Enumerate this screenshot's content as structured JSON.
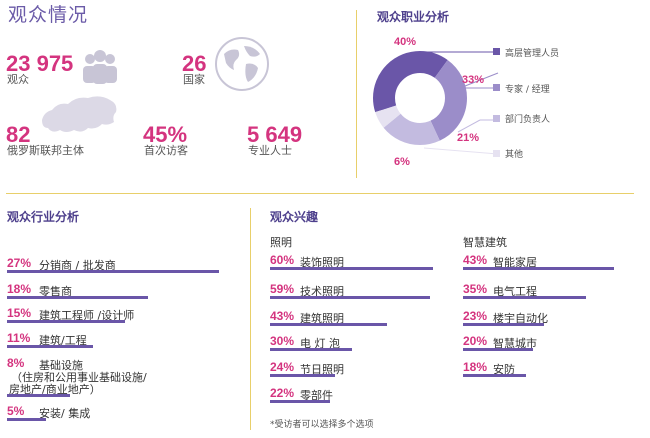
{
  "header": {
    "title": "观众情况"
  },
  "stats": [
    {
      "value": "23 975",
      "label": "观众"
    },
    {
      "value": "26",
      "label": "国家"
    },
    {
      "value": "82",
      "label": "俄罗斯联邦主体"
    },
    {
      "value": "45%",
      "label": "首次访客"
    },
    {
      "value": "5 649",
      "label": "专业人士"
    }
  ],
  "occupation": {
    "title": "观众职业分析",
    "labels": [
      "40%",
      "33%",
      "21%",
      "6%"
    ]
  },
  "industry": {
    "title": "观众行业分析",
    "items": [
      {
        "pct": "27%",
        "label": "分销商 / 批发商"
      },
      {
        "pct": "18%",
        "label": "零售商"
      },
      {
        "pct": "15%",
        "label": "建筑工程师 /设计师"
      },
      {
        "pct": "11%",
        "label": "建筑/工程"
      },
      {
        "pct": "8%",
        "label": "基础设施",
        "sub": [
          "（住房和公用事业基础设施/",
          "房地产/商业地产）"
        ]
      },
      {
        "pct": "5%",
        "label": "安装/ 集成"
      }
    ]
  },
  "interest": {
    "title": "观众兴趣",
    "lighting_title": "照明",
    "smart_title": "智慧建筑",
    "lighting": [
      {
        "pct": "60%",
        "label": "装饰照明"
      },
      {
        "pct": "59%",
        "label": "技术照明"
      },
      {
        "pct": "43%",
        "label": "建筑照明"
      },
      {
        "pct": "30%",
        "label": "电 灯 泡"
      },
      {
        "pct": "24%",
        "label": "节日照明"
      },
      {
        "pct": "22%",
        "label": "零部件"
      }
    ],
    "smart": [
      {
        "pct": "43%",
        "label": "智能家居"
      },
      {
        "pct": "35%",
        "label": "电气工程"
      },
      {
        "pct": "23%",
        "label": "楼宇自动化"
      },
      {
        "pct": "20%",
        "label": "智慧城市"
      },
      {
        "pct": "18%",
        "label": "安防"
      }
    ],
    "note": "*受访者可以选择多个选项"
  },
  "colors": {
    "accent": "#d4347f",
    "bar": "#6a56a8",
    "divider": "#e8cf6a",
    "title": "#6b5ba8"
  },
  "chart_data": [
    {
      "type": "pie",
      "title": "观众职业分析",
      "categories": [
        "高层管理人员",
        "专家 / 经理",
        "部门负责人",
        "其他"
      ],
      "values": [
        40,
        33,
        21,
        6
      ],
      "colors": [
        "#6a56a8",
        "#9b8dc9",
        "#c3bbe0",
        "#e6e2f1"
      ]
    },
    {
      "type": "bar",
      "title": "观众行业分析",
      "categories": [
        "分销商 / 批发商",
        "零售商",
        "建筑工程师 /设计师",
        "建筑/工程",
        "基础设施 （住房和公用事业基础设施/ 房地产/商业地产）",
        "安装/ 集成"
      ],
      "values": [
        27,
        18,
        15,
        11,
        8,
        5
      ]
    },
    {
      "type": "bar",
      "title": "照明",
      "categories": [
        "装饰照明",
        "技术照明",
        "建筑照明",
        "电 灯 泡",
        "节日照明",
        "零部件"
      ],
      "values": [
        60,
        59,
        43,
        30,
        24,
        22
      ]
    },
    {
      "type": "bar",
      "title": "智慧建筑",
      "categories": [
        "智能家居",
        "电气工程",
        "楼宇自动化",
        "智慧城市",
        "安防"
      ],
      "values": [
        43,
        35,
        23,
        20,
        18
      ]
    }
  ]
}
